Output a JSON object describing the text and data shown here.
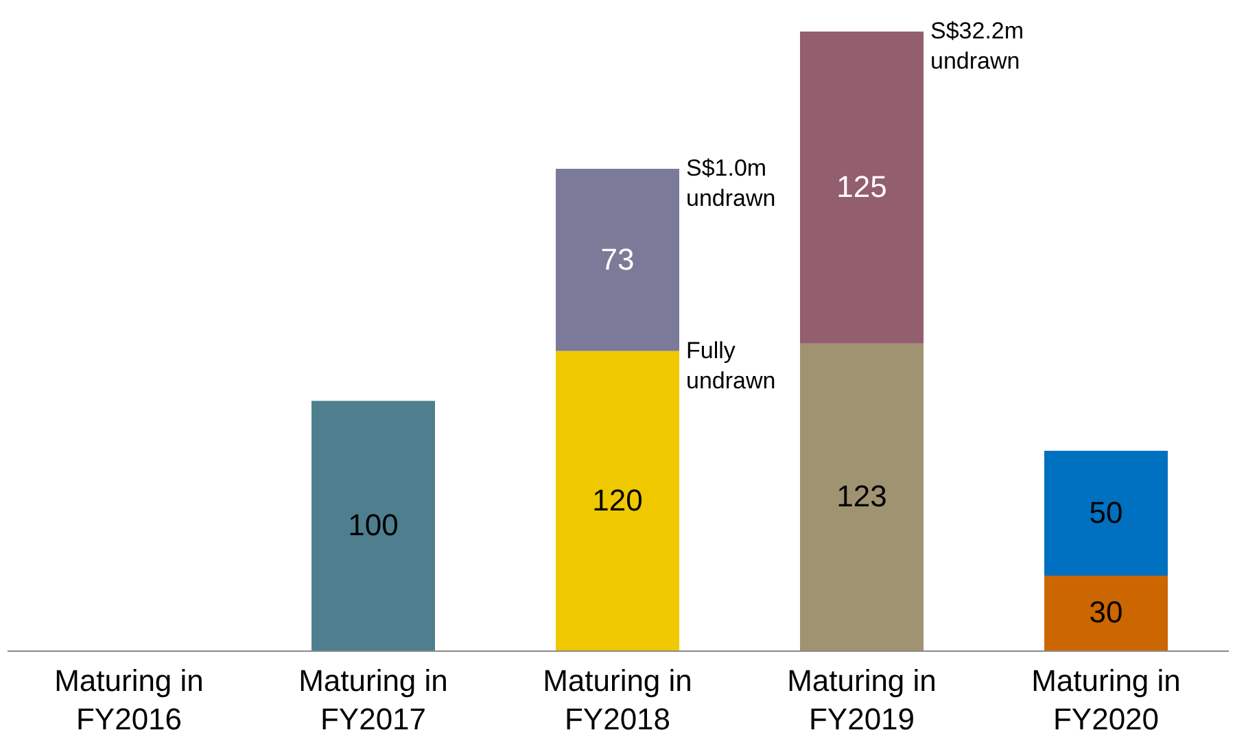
{
  "chart_data": {
    "type": "bar",
    "stacked": true,
    "data_labels": true,
    "categories": [
      "Maturing in\nFY2016",
      "Maturing in\nFY2017",
      "Maturing in\nFY2018",
      "Maturing in\nFY2019",
      "Maturing in\nFY2020"
    ],
    "series": [
      {
        "colors": [
          "#4e7f8e",
          "#4e7f8e",
          "#f0c800",
          "#a09372",
          "#cc6600"
        ],
        "values": [
          null,
          100,
          120,
          123,
          30
        ]
      },
      {
        "colors": [
          "#7b7b99",
          "#7b7b99",
          "#7b7b99",
          "#935e6e",
          "#0070c0"
        ],
        "values": [
          null,
          null,
          73,
          125,
          50
        ]
      }
    ],
    "annotations": [
      {
        "text": "Fully undrawn",
        "x": "Maturing in\nFY2018",
        "y": 120
      },
      {
        "text": "S$1.0m undrawn",
        "x": "Maturing in\nFY2018",
        "y": 193
      },
      {
        "text": "S$32.2m undrawn",
        "x": "Maturing in\nFY2019",
        "y": 248
      }
    ]
  }
}
